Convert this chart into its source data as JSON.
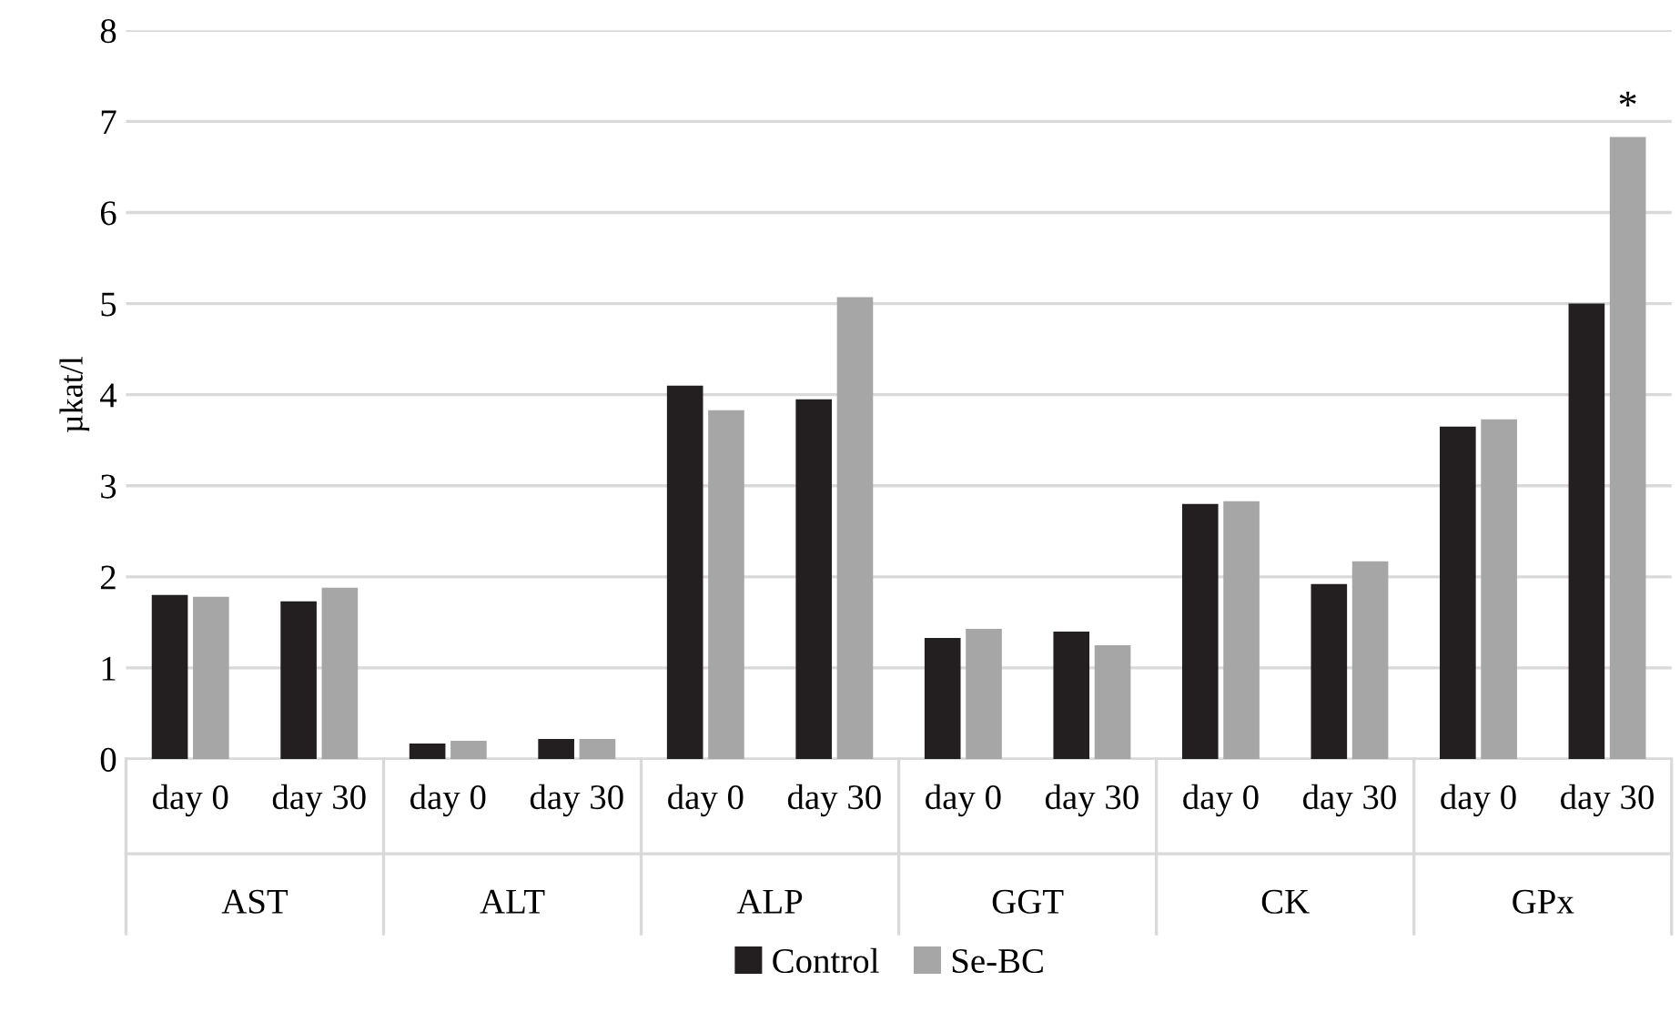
{
  "chart_data": {
    "type": "bar",
    "ylabel": "µkat/l",
    "categories": [
      "day 0",
      "day 30",
      "day 0",
      "day 30",
      "day 0",
      "day 30",
      "day 0",
      "day 30",
      "day 0",
      "day 30",
      "day 0",
      "day 30"
    ],
    "series": [
      {
        "name": "Control",
        "color": "#231f20",
        "values": [
          1.8,
          1.73,
          0.17,
          0.22,
          4.1,
          3.95,
          1.33,
          1.4,
          2.8,
          1.92,
          3.65,
          5.0
        ]
      },
      {
        "name": "Se-BC",
        "color": "#a6a6a6",
        "values": [
          1.78,
          1.88,
          0.2,
          0.22,
          3.83,
          5.07,
          1.43,
          1.25,
          2.83,
          2.17,
          3.73,
          6.83
        ]
      }
    ],
    "ylim": [
      0,
      8
    ],
    "yticks": [
      0,
      1,
      2,
      3,
      4,
      5,
      6,
      7,
      8
    ],
    "grid": "y",
    "legend": "bottom",
    "annotations": [
      "AST",
      "ALT",
      "ALP",
      "GGT",
      "CK",
      "GPx",
      "*"
    ]
  }
}
